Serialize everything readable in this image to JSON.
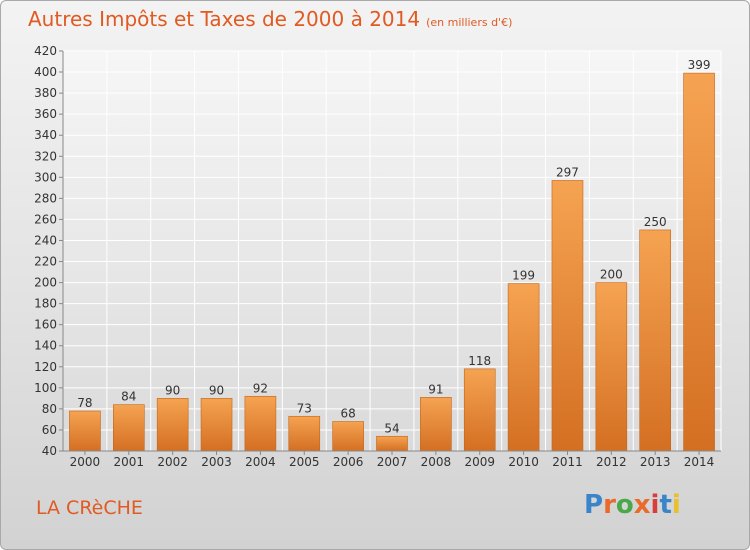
{
  "header": {
    "title": "Autres Impôts et Taxes de 2000 à 2014",
    "subtitle": "(en milliers d'€)"
  },
  "footer": {
    "commune": "LA CRèCHE",
    "logo": "Proxiti",
    "logo_colors": [
      "#3a84c9",
      "#e96a2a",
      "#4aa84a",
      "#e96a2a",
      "#d83c3c",
      "#3a84c9",
      "#e8c02a"
    ]
  },
  "chart_data": {
    "type": "bar",
    "title": "Autres Impôts et Taxes de 2000 à 2014",
    "subtitle": "(en milliers d'€)",
    "categories": [
      "2000",
      "2001",
      "2002",
      "2003",
      "2004",
      "2005",
      "2006",
      "2007",
      "2008",
      "2009",
      "2010",
      "2011",
      "2012",
      "2013",
      "2014"
    ],
    "values": [
      78,
      84,
      90,
      90,
      92,
      73,
      68,
      54,
      91,
      118,
      199,
      297,
      200,
      250,
      399
    ],
    "ylim": [
      40,
      420
    ],
    "yticks": [
      40,
      60,
      80,
      100,
      120,
      140,
      160,
      180,
      200,
      220,
      240,
      260,
      280,
      300,
      320,
      340,
      360,
      380,
      400,
      420
    ],
    "grid": true,
    "bar_color": "#f0913c",
    "bar_color_dark": "#c9661c"
  }
}
